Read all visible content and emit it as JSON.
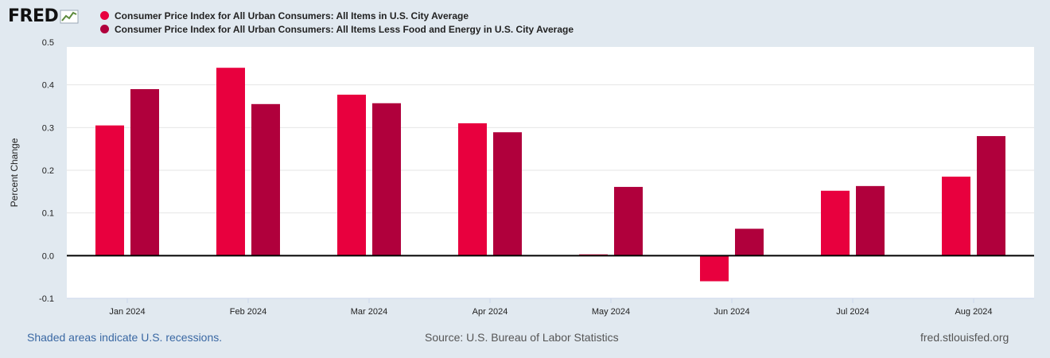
{
  "logo": {
    "text": "FRED"
  },
  "footer": {
    "recession_note": "Shaded areas indicate U.S. recessions.",
    "source": "Source: U.S. Bureau of Labor Statistics",
    "site": "fred.stlouisfed.org"
  },
  "chart_data": {
    "type": "bar",
    "title": "",
    "xlabel": "",
    "ylabel": "Percent Change",
    "ylim": [
      -0.1,
      0.5
    ],
    "yticks": [
      "-0.1",
      "0.0",
      "0.1",
      "0.2",
      "0.3",
      "0.4",
      "0.5"
    ],
    "grid": true,
    "legend_position": "top",
    "categories": [
      "Jan 2024",
      "Feb 2024",
      "Mar 2024",
      "Apr 2024",
      "May 2024",
      "Jun 2024",
      "Jul 2024",
      "Aug 2024"
    ],
    "series": [
      {
        "name": "Consumer Price Index for All Urban Consumers: All Items in U.S. City Average",
        "color": "#e8003e",
        "values": [
          0.305,
          0.44,
          0.377,
          0.31,
          0.003,
          -0.06,
          0.152,
          0.185
        ]
      },
      {
        "name": "Consumer Price Index for All Urban Consumers: All Items Less Food and Energy in U.S. City Average",
        "color": "#b0003c",
        "values": [
          0.39,
          0.355,
          0.357,
          0.289,
          0.161,
          0.063,
          0.163,
          0.28
        ]
      }
    ]
  }
}
